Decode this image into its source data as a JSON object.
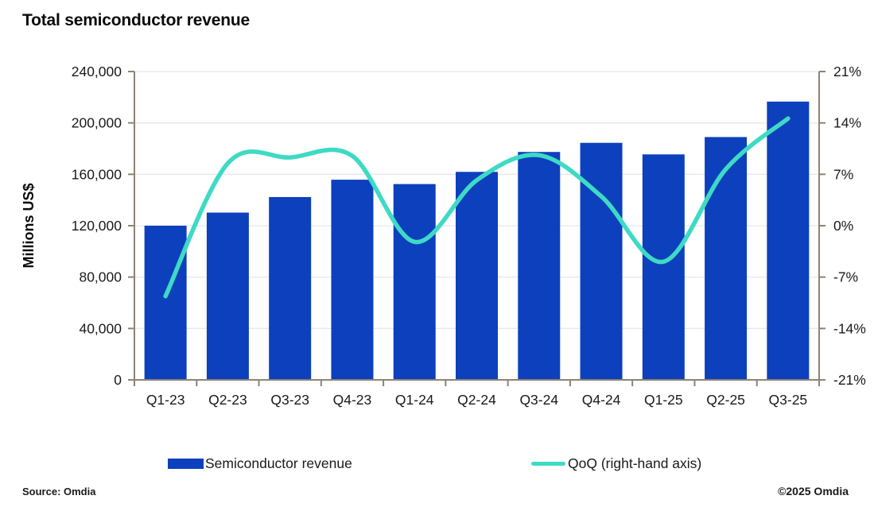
{
  "title": "Total semiconductor revenue",
  "footer": {
    "source": "Source: Omdia",
    "copyright": "©2025 Omdia"
  },
  "colors": {
    "bar": "#0D40BD",
    "line": "#3EDAC4",
    "axis": "#8C8374",
    "gridline": "#E8E8E8",
    "text": "#1a1a1a"
  },
  "legend": {
    "position": "bottom",
    "items": [
      {
        "label": "Semiconductor revenue",
        "swatch": "bar",
        "color": "#0D40BD"
      },
      {
        "label": "QoQ (right-hand axis)",
        "swatch": "line",
        "color": "#3EDAC4"
      }
    ]
  },
  "chart_data": {
    "type": "bar",
    "title": "Total semiconductor revenue",
    "xlabel": "",
    "ylabel": "Millions US$",
    "grid": true,
    "legend_position": "bottom",
    "categories": [
      "Q1-23",
      "Q2-23",
      "Q3-23",
      "Q4-23",
      "Q1-24",
      "Q2-24",
      "Q3-24",
      "Q4-24",
      "Q1-25",
      "Q2-25",
      "Q3-25"
    ],
    "series": [
      {
        "name": "Semiconductor revenue",
        "type": "bar",
        "axis": "left",
        "values": [
          120000,
          130200,
          142300,
          155800,
          152400,
          161900,
          177400,
          184500,
          175500,
          189000,
          216600
        ]
      },
      {
        "name": "QoQ (right-hand axis)",
        "type": "line",
        "axis": "right",
        "values": [
          -9.6,
          8.5,
          9.3,
          9.5,
          -2.2,
          6.2,
          9.6,
          4.0,
          -4.9,
          7.7,
          14.6
        ]
      }
    ],
    "left_axis": {
      "ylim": [
        0,
        240000
      ],
      "tick_step": 40000,
      "tick_labels": [
        "0",
        "40,000",
        "80,000",
        "120,000",
        "160,000",
        "200,000",
        "240,000"
      ]
    },
    "right_axis": {
      "ylim": [
        -21,
        21
      ],
      "tick_step": 7,
      "tick_labels": [
        "-21%",
        "-14%",
        "-7%",
        "0%",
        "7%",
        "14%",
        "21%"
      ]
    }
  }
}
